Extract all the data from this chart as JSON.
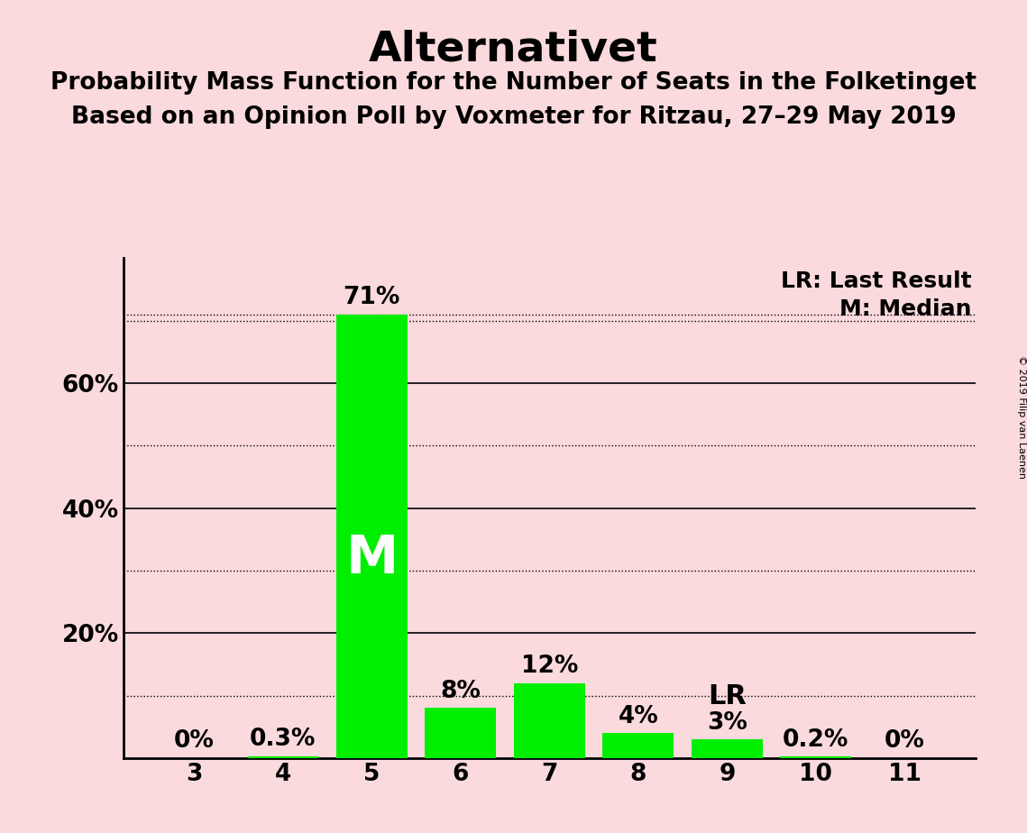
{
  "title": "Alternativet",
  "subtitle1": "Probability Mass Function for the Number of Seats in the Folketinget",
  "subtitle2": "Based on an Opinion Poll by Voxmeter for Ritzau, 27–29 May 2019",
  "copyright": "© 2019 Filip van Laenen",
  "categories": [
    3,
    4,
    5,
    6,
    7,
    8,
    9,
    10,
    11
  ],
  "values": [
    0.0,
    0.3,
    71.0,
    8.0,
    12.0,
    4.0,
    3.0,
    0.2,
    0.0
  ],
  "bar_labels": [
    "0%",
    "0.3%",
    "71%",
    "8%",
    "12%",
    "4%",
    "3%",
    "0.2%",
    "0%"
  ],
  "bar_color": "#00ee00",
  "background_color": "#fadadd",
  "median_seat": 5,
  "last_result_seat": 9,
  "median_label": "M",
  "lr_label": "LR",
  "legend_lr": "LR: Last Result",
  "legend_m": "M: Median",
  "ylim": [
    0,
    80
  ],
  "solid_gridlines": [
    20,
    40,
    60
  ],
  "dotted_gridlines": [
    10,
    30,
    50,
    70,
    71
  ],
  "ytick_positions": [
    20,
    40,
    60
  ],
  "ytick_labels": [
    "20%",
    "40%",
    "60%"
  ],
  "bar_label_fontsize": 19,
  "axis_tick_fontsize": 19,
  "median_label_fontsize": 42,
  "lr_label_fontsize": 22,
  "legend_fontsize": 18,
  "title_fontsize": 34,
  "subtitle_fontsize": 19
}
